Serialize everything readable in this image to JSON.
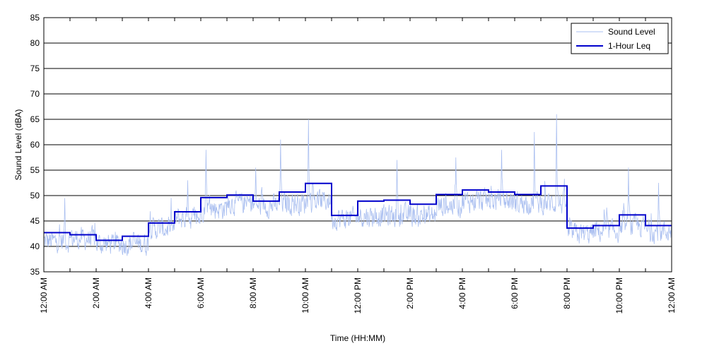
{
  "chart_data": {
    "type": "line",
    "title": "",
    "xlabel": "Time (HH:MM)",
    "ylabel": "Sound Level (dBA)",
    "ylim": [
      35,
      85
    ],
    "yticks": [
      35,
      40,
      45,
      50,
      55,
      60,
      65,
      70,
      75,
      80,
      85
    ],
    "xlim_hours": [
      0,
      24
    ],
    "xtick_labels": [
      "12:00 AM",
      "2:00 AM",
      "4:00 AM",
      "6:00 AM",
      "8:00 AM",
      "10:00 AM",
      "12:00 PM",
      "2:00 PM",
      "4:00 PM",
      "6:00 PM",
      "8:00 PM",
      "10:00 PM",
      "12:00 AM"
    ],
    "grid": "horizontal",
    "legend_position": "top-right",
    "series": [
      {
        "name": "Sound Level",
        "color": "#aabff0",
        "baseline_by_hour": [
          41,
          41.5,
          40.5,
          40.5,
          43.5,
          45.5,
          47.5,
          48.5,
          48,
          48.5,
          49,
          45.5,
          46,
          46,
          46,
          48,
          49,
          49,
          48.5,
          48.5,
          42.5,
          43,
          44,
          43
        ],
        "peaks": [
          {
            "hour": 0.8,
            "value": 49.5
          },
          {
            "hour": 5.5,
            "value": 53
          },
          {
            "hour": 6.2,
            "value": 59
          },
          {
            "hour": 8.1,
            "value": 55.5
          },
          {
            "hour": 9.05,
            "value": 61
          },
          {
            "hour": 10.12,
            "value": 65
          },
          {
            "hour": 13.5,
            "value": 57
          },
          {
            "hour": 15.75,
            "value": 57.5
          },
          {
            "hour": 17.5,
            "value": 59
          },
          {
            "hour": 18.75,
            "value": 62.5
          },
          {
            "hour": 19.6,
            "value": 66
          },
          {
            "hour": 22.35,
            "value": 55.5
          },
          {
            "hour": 23.5,
            "value": 52.5
          }
        ]
      },
      {
        "name": "1-Hour Leq",
        "color": "#0000cc",
        "hours": [
          0,
          1,
          2,
          3,
          4,
          5,
          6,
          7,
          8,
          9,
          10,
          11,
          12,
          13,
          14,
          15,
          16,
          17,
          18,
          19,
          20,
          21,
          22,
          23
        ],
        "values": [
          42.7,
          42.3,
          41.2,
          42.0,
          44.6,
          46.8,
          49.6,
          50.1,
          48.9,
          50.7,
          52.4,
          46.1,
          48.9,
          49.1,
          48.3,
          50.2,
          51.1,
          50.7,
          50.2,
          51.9,
          43.6,
          44.1,
          46.2,
          44.1
        ]
      }
    ]
  }
}
